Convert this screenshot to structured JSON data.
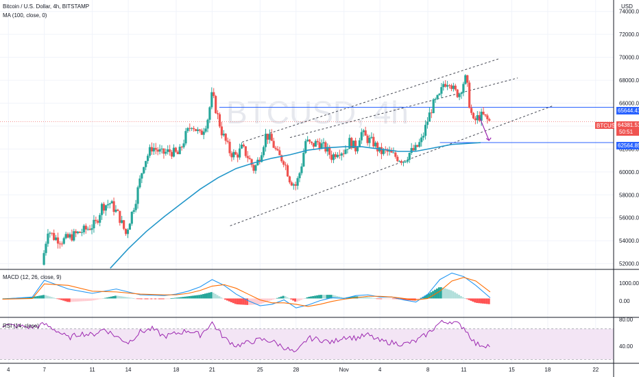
{
  "header": {
    "title": "Bitcoin / U.S. Dollar, 4h, BITSTAMP",
    "ma_label": "MA (100, close, 0)",
    "currency": "USD",
    "watermark": "BTCUSD, 4h"
  },
  "colors": {
    "up": "#26a69a",
    "down": "#ef5350",
    "ma": "#2196c9",
    "hline": "#2962ff",
    "channel": "#434651",
    "macd": "#2196f3",
    "signal": "#ff6d00",
    "rsi": "#9c27b0",
    "rsi_band": "#f3e5f5",
    "arrow": "#9c27b0"
  },
  "price_tags": {
    "resistance": "65644.41",
    "current_symbol": "BTCUSD",
    "current": "64381.51",
    "countdown": "50:51",
    "support": "62564.85"
  },
  "macd_pane": {
    "label": "MACD (12, 26, close, 9)",
    "ticks": [
      "1000.00",
      "0.00"
    ]
  },
  "rsi_pane": {
    "label": "RSI (14, close)",
    "ticks": [
      "80.00",
      "40.00"
    ]
  },
  "chart_data": {
    "type": "candlestick",
    "title": "Bitcoin / U.S. Dollar, 4h, BITSTAMP",
    "y_ticks": [
      52000,
      54000,
      56000,
      58000,
      60000,
      62000,
      64000,
      66000,
      68000,
      70000,
      72000,
      74000
    ],
    "y_tick_labels": [
      "52000.00",
      "54000.00",
      "56000.00",
      "58000.00",
      "60000.00",
      "62000.00",
      "64000.00",
      "66000.00",
      "68000.00",
      "70000.00",
      "72000.00",
      "74000.00"
    ],
    "ylim": [
      51500,
      75000
    ],
    "x_ticks": [
      "4",
      "7",
      "11",
      "14",
      "18",
      "21",
      "25",
      "28",
      "Nov",
      "4",
      "8",
      "11",
      "15",
      "18",
      "22"
    ],
    "x_tick_days": [
      -3,
      0,
      4,
      7,
      11,
      14,
      18,
      21,
      25,
      28,
      32,
      35,
      39,
      42,
      46
    ],
    "xlim_days": [
      -3.7,
      47.5
    ],
    "levels": {
      "resistance": 65644.41,
      "current": 64381.51,
      "support": 62564.85
    },
    "close_series": [
      [
        -0.2,
        51900
      ],
      [
        0.3,
        55000
      ],
      [
        0.8,
        54300
      ],
      [
        1.5,
        54000
      ],
      [
        2.5,
        54500
      ],
      [
        3.5,
        55000
      ],
      [
        4.3,
        55500
      ],
      [
        4.8,
        57000
      ],
      [
        5.5,
        57300
      ],
      [
        6.2,
        56200
      ],
      [
        6.8,
        54600
      ],
      [
        7.6,
        57500
      ],
      [
        8.3,
        60800
      ],
      [
        9.0,
        62200
      ],
      [
        9.8,
        61600
      ],
      [
        10.5,
        61800
      ],
      [
        11.2,
        61500
      ],
      [
        11.8,
        63200
      ],
      [
        12.3,
        64200
      ],
      [
        13.0,
        63200
      ],
      [
        13.6,
        64500
      ],
      [
        14.0,
        66800
      ],
      [
        14.3,
        65500
      ],
      [
        14.8,
        63500
      ],
      [
        15.5,
        61700
      ],
      [
        16.0,
        61400
      ],
      [
        16.5,
        62100
      ],
      [
        17.0,
        61300
      ],
      [
        17.5,
        60200
      ],
      [
        18.0,
        61400
      ],
      [
        18.5,
        63300
      ],
      [
        19.0,
        62600
      ],
      [
        19.5,
        61400
      ],
      [
        20.0,
        61000
      ],
      [
        20.5,
        59300
      ],
      [
        21.0,
        58800
      ],
      [
        21.4,
        60300
      ],
      [
        21.8,
        62700
      ],
      [
        22.3,
        62300
      ],
      [
        22.8,
        62600
      ],
      [
        23.5,
        62000
      ],
      [
        24.0,
        61300
      ],
      [
        24.5,
        61900
      ],
      [
        25.0,
        61800
      ],
      [
        25.5,
        62700
      ],
      [
        26.0,
        62000
      ],
      [
        26.4,
        63500
      ],
      [
        26.9,
        62900
      ],
      [
        27.5,
        62500
      ],
      [
        28.0,
        61700
      ],
      [
        28.5,
        61800
      ],
      [
        29.0,
        61500
      ],
      [
        29.6,
        61200
      ],
      [
        30.0,
        61000
      ],
      [
        30.5,
        61700
      ],
      [
        31.0,
        62000
      ],
      [
        31.5,
        62800
      ],
      [
        32.0,
        64600
      ],
      [
        32.4,
        65800
      ],
      [
        33.0,
        66600
      ],
      [
        33.3,
        67700
      ],
      [
        33.8,
        68000
      ],
      [
        34.2,
        67000
      ],
      [
        34.6,
        66800
      ],
      [
        35.0,
        67900
      ],
      [
        35.2,
        68200
      ],
      [
        35.5,
        65700
      ],
      [
        35.8,
        64300
      ],
      [
        36.2,
        64800
      ],
      [
        36.6,
        64900
      ],
      [
        37.0,
        64500
      ],
      [
        37.3,
        64300
      ]
    ],
    "series": [
      {
        "name": "MA (100, close, 0)",
        "x": [
          5.5,
          7.0,
          8.5,
          10.0,
          11.5,
          13.0,
          14.5,
          16.0,
          17.5,
          19.0,
          20.5,
          22.0,
          23.5,
          25.0,
          26.5,
          28.0,
          29.5,
          31.0,
          32.5,
          34.0,
          35.5,
          36.4
        ],
        "y": [
          51600,
          53300,
          54800,
          56100,
          57300,
          58500,
          59500,
          60300,
          60800,
          61200,
          61500,
          61900,
          62100,
          62200,
          62200,
          62000,
          61800,
          61800,
          62100,
          62400,
          62500,
          62560
        ]
      },
      {
        "name": "MACD",
        "x": [
          -3.5,
          -1,
          0,
          2,
          4,
          6,
          8,
          10,
          11,
          12,
          13,
          14,
          15,
          16,
          17,
          18,
          19,
          20,
          21,
          22,
          23,
          24,
          25,
          26,
          27,
          28,
          29,
          30,
          31,
          32,
          33,
          34,
          35,
          36,
          37.2
        ],
        "y": [
          -50,
          100,
          1250,
          650,
          350,
          650,
          250,
          200,
          300,
          500,
          800,
          1300,
          900,
          300,
          -150,
          -500,
          -400,
          -100,
          -650,
          -450,
          -150,
          50,
          0,
          200,
          250,
          100,
          100,
          -100,
          -250,
          300,
          1300,
          1750,
          1500,
          900,
          50
        ]
      },
      {
        "name": "Signal",
        "x": [
          -3.5,
          -1,
          0,
          2,
          4,
          6,
          8,
          10,
          11,
          12,
          13,
          14,
          15,
          16,
          17,
          18,
          19,
          20,
          21,
          22,
          23,
          24,
          25,
          26,
          27,
          28,
          29,
          30,
          31,
          32,
          33,
          34,
          35,
          36,
          37.2
        ],
        "y": [
          -50,
          0,
          1000,
          900,
          500,
          450,
          300,
          250,
          250,
          350,
          550,
          850,
          950,
          700,
          300,
          -100,
          -300,
          -300,
          -400,
          -550,
          -400,
          -200,
          -50,
          50,
          150,
          150,
          100,
          0,
          -100,
          0,
          500,
          1200,
          1450,
          1200,
          450
        ]
      },
      {
        "name": "RSI (14, close)",
        "x": [
          -3.5,
          -1,
          0,
          1,
          2,
          3,
          4,
          5,
          6,
          7,
          8,
          9,
          10,
          11,
          12,
          13,
          14,
          15,
          16,
          17,
          18,
          19,
          20,
          21,
          22,
          23,
          24,
          25,
          26,
          27,
          28,
          29,
          30,
          31,
          32,
          33,
          34,
          35,
          36,
          37.2
        ],
        "y": [
          75,
          72,
          76,
          68,
          58,
          64,
          62,
          70,
          60,
          52,
          66,
          70,
          60,
          64,
          68,
          62,
          78,
          58,
          48,
          52,
          56,
          54,
          46,
          38,
          58,
          56,
          52,
          60,
          58,
          62,
          54,
          52,
          50,
          54,
          64,
          78,
          80,
          72,
          50,
          48
        ]
      }
    ],
    "rsi_ylim": [
      25,
      85
    ],
    "macd_ylim": [
      -1300,
      2000
    ],
    "annotations": [
      {
        "type": "channel-line",
        "from": [
          16.5,
          62600
        ],
        "to": [
          38.0,
          69900
        ]
      },
      {
        "type": "channel-line",
        "from": [
          20.5,
          63000
        ],
        "to": [
          39.5,
          68200
        ]
      },
      {
        "type": "channel-line",
        "from": [
          15.5,
          55300
        ],
        "to": [
          42.5,
          65800
        ]
      }
    ]
  }
}
